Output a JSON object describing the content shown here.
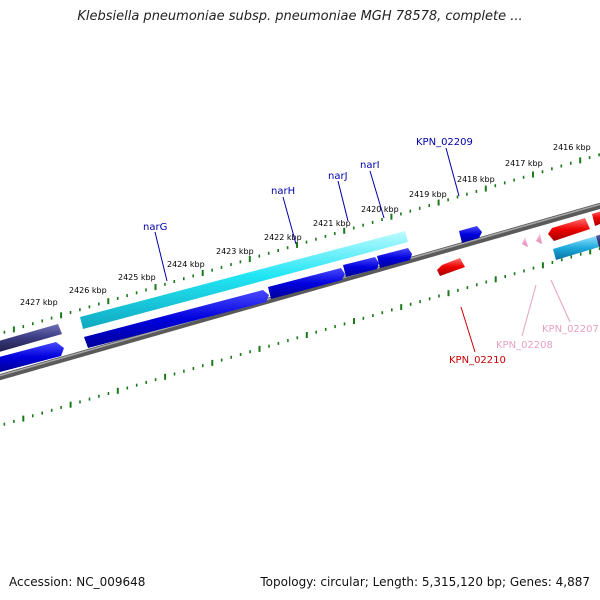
{
  "title": "Klebsiella pneumoniae subsp. pneumoniae MGH 78578, complete ...",
  "footer": {
    "accession": "Accession: NC_009648",
    "summary": "Topology: circular; Length: 5,315,120 bp; Genes: 4,887"
  },
  "colors": {
    "backbone": "#808080",
    "tick": "#1a7a1a",
    "forward_label": "#0000aa",
    "reverse_label": "#cc0000",
    "pseudo_label": "#e8a0c0",
    "cds_blue": "#0000dd",
    "cds_cyan": "#22ddee",
    "cds_red": "#ee0000",
    "cds_navy": "#3a3a80",
    "cds_skyblue": "#1eaadd",
    "cds_pink": "#f0a0c8"
  },
  "tick_labels": [
    "2427 kbp",
    "2426 kbp",
    "2425 kbp",
    "2424 kbp",
    "2423 kbp",
    "2422 kbp",
    "2421 kbp",
    "2420 kbp",
    "2419 kbp",
    "2418 kbp",
    "2417 kbp",
    "2416 kbp"
  ],
  "gene_labels": [
    {
      "name": "narG",
      "strand": "forward"
    },
    {
      "name": "narH",
      "strand": "forward"
    },
    {
      "name": "narJ",
      "strand": "forward"
    },
    {
      "name": "narI",
      "strand": "forward"
    },
    {
      "name": "KPN_02209",
      "strand": "forward"
    },
    {
      "name": "KPN_02210",
      "strand": "reverse"
    },
    {
      "name": "KPN_02208",
      "strand": "pseudo"
    },
    {
      "name": "KPN_02207",
      "strand": "pseudo"
    }
  ]
}
